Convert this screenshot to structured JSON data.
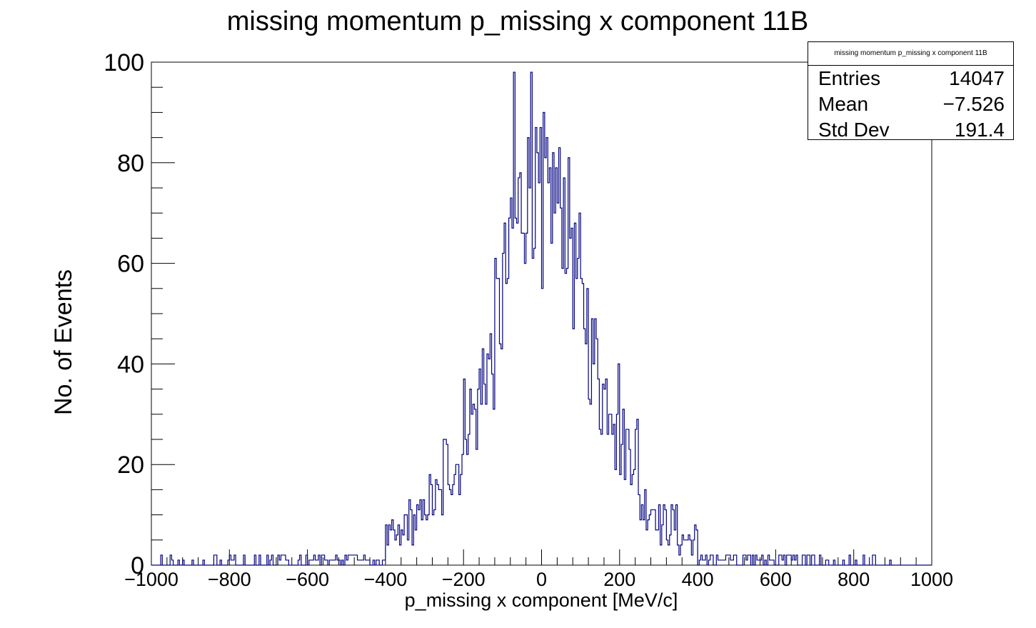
{
  "chart_data": {
    "type": "histogram",
    "title": "missing momentum p_missing x component 11B",
    "xlabel": "p_missing x component [MeV/c]",
    "ylabel": "No. of Events",
    "xlim": [
      -1000,
      1000
    ],
    "ylim": [
      0,
      100
    ],
    "x_ticks": [
      "−1000",
      "−800",
      "−600",
      "−400",
      "−200",
      "0",
      "200",
      "400",
      "600",
      "800",
      "1000"
    ],
    "y_ticks": [
      "0",
      "20",
      "40",
      "60",
      "80",
      "100"
    ],
    "grid": false,
    "line_color": "#000080",
    "bin_width": 4,
    "series": [
      {
        "x_start": [
          -1000,
          -900,
          -800,
          -700,
          -600,
          -500,
          -400,
          -350,
          -300,
          -250,
          -200,
          -150,
          -120,
          -100,
          -80,
          -60,
          -40,
          -20,
          0,
          20,
          40,
          60,
          80,
          100,
          120,
          150,
          200,
          250,
          300,
          350,
          400,
          500,
          600,
          700,
          800,
          900
        ],
        "x_end": [
          -900,
          -800,
          -700,
          -600,
          -500,
          -400,
          -350,
          -300,
          -250,
          -200,
          -150,
          -120,
          -100,
          -80,
          -60,
          -40,
          -20,
          0,
          20,
          40,
          60,
          80,
          100,
          120,
          150,
          200,
          250,
          300,
          350,
          400,
          500,
          600,
          700,
          800,
          900,
          1000
        ],
        "approx_counts": [
          1,
          1,
          1,
          2,
          3,
          3,
          5,
          9,
          13,
          20,
          30,
          40,
          50,
          58,
          68,
          72,
          75,
          74,
          72,
          74,
          72,
          68,
          58,
          50,
          42,
          34,
          24,
          12,
          8,
          5,
          3,
          2,
          2,
          1,
          1,
          0
        ]
      }
    ],
    "spikes": [
      {
        "x": -70,
        "y": 98
      },
      {
        "x": -28,
        "y": 98
      },
      {
        "x": 5,
        "y": 90
      },
      {
        "x": 2,
        "y": 55
      },
      {
        "x": -160,
        "y": 39
      },
      {
        "x": 190,
        "y": 19
      }
    ]
  },
  "stats_box": {
    "title": "missing momentum p_missing x component 11B",
    "rows": [
      {
        "label": "Entries",
        "value": "14047"
      },
      {
        "label": "Mean",
        "value": "−7.526"
      },
      {
        "label": "Std Dev",
        "value": "191.4"
      }
    ]
  }
}
